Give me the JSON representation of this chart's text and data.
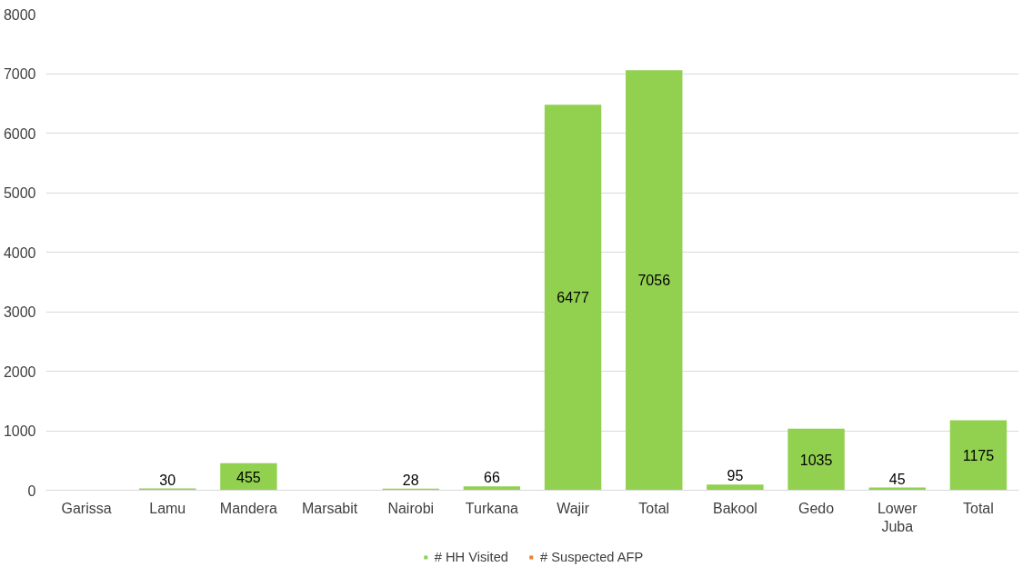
{
  "chart_data": {
    "type": "bar",
    "categories": [
      "Garissa",
      "Lamu",
      "Mandera",
      "Marsabit",
      "Nairobi",
      "Turkana",
      "Wajir",
      "Total",
      "Bakool",
      "Gedo",
      "Lower\nJuba",
      "Total"
    ],
    "series": [
      {
        "name": "# HH Visited",
        "color": "#92d050",
        "values": [
          null,
          30,
          455,
          null,
          28,
          66,
          6477,
          7056,
          95,
          1035,
          45,
          1175
        ]
      },
      {
        "name": "# Suspected AFP",
        "color": "#ed7d31",
        "values": [
          null,
          null,
          null,
          null,
          null,
          null,
          null,
          null,
          null,
          null,
          null,
          null
        ]
      }
    ],
    "ylim": [
      0,
      8000
    ],
    "yticks": [
      0,
      1000,
      2000,
      3000,
      4000,
      5000,
      6000,
      7000,
      8000
    ],
    "grid": "y",
    "legend": "bottom",
    "data_labels": true
  }
}
